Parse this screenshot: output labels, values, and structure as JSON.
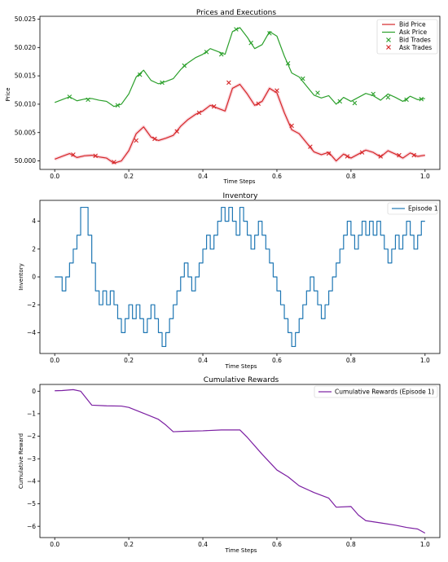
{
  "chart_data": [
    {
      "type": "line",
      "title": "Prices and Executions",
      "xlabel": "Time Steps",
      "ylabel": "Price",
      "xlim": [
        -0.04,
        1.04
      ],
      "ylim": [
        49.9985,
        50.0255
      ],
      "xticks": [
        "0.0",
        "0.2",
        "0.4",
        "0.6",
        "0.8",
        "1.0"
      ],
      "xtick_values": [
        0,
        0.2,
        0.4,
        0.6,
        0.8,
        1.0
      ],
      "yticks": [
        "50.000",
        "50.005",
        "50.010",
        "50.015",
        "50.020",
        "50.025"
      ],
      "ytick_values": [
        50.0,
        50.005,
        50.01,
        50.015,
        50.02,
        50.025
      ],
      "legend_position": "top-right",
      "series": [
        {
          "name": "Bid Price",
          "color": "#d62728",
          "x": [
            0,
            0.02,
            0.04,
            0.06,
            0.08,
            0.1,
            0.12,
            0.14,
            0.16,
            0.18,
            0.2,
            0.22,
            0.24,
            0.26,
            0.28,
            0.3,
            0.32,
            0.34,
            0.36,
            0.38,
            0.4,
            0.42,
            0.44,
            0.46,
            0.48,
            0.5,
            0.52,
            0.54,
            0.56,
            0.58,
            0.6,
            0.62,
            0.64,
            0.66,
            0.68,
            0.7,
            0.72,
            0.74,
            0.76,
            0.78,
            0.8,
            0.82,
            0.84,
            0.86,
            0.88,
            0.9,
            0.92,
            0.94,
            0.96,
            0.98,
            1.0
          ],
          "values": [
            50.0003,
            50.0008,
            50.0013,
            50.0006,
            50.0009,
            50.001,
            50.0007,
            50.0005,
            49.9996,
            50.0,
            50.0018,
            50.0048,
            50.006,
            50.0042,
            50.0036,
            50.004,
            50.0045,
            50.0061,
            50.0073,
            50.0082,
            50.0088,
            50.0098,
            50.0093,
            50.0088,
            50.0128,
            50.0135,
            50.0118,
            50.0098,
            50.0105,
            50.0128,
            50.012,
            50.0085,
            50.0055,
            50.0048,
            50.0032,
            50.0016,
            50.0011,
            50.0015,
            50.0,
            50.0012,
            50.0005,
            50.0012,
            50.0019,
            50.0015,
            50.0007,
            50.0018,
            50.0012,
            50.0005,
            50.0014,
            50.0008,
            50.001
          ]
        },
        {
          "name": "Ask Price",
          "color": "#2ca02c",
          "x": [
            0,
            0.02,
            0.04,
            0.06,
            0.08,
            0.1,
            0.12,
            0.14,
            0.16,
            0.18,
            0.2,
            0.22,
            0.24,
            0.26,
            0.28,
            0.3,
            0.32,
            0.34,
            0.36,
            0.38,
            0.4,
            0.42,
            0.44,
            0.46,
            0.48,
            0.5,
            0.52,
            0.54,
            0.56,
            0.58,
            0.6,
            0.62,
            0.64,
            0.66,
            0.68,
            0.7,
            0.72,
            0.74,
            0.76,
            0.78,
            0.8,
            0.82,
            0.84,
            0.86,
            0.88,
            0.9,
            0.92,
            0.94,
            0.96,
            0.98,
            1.0
          ],
          "values": [
            50.0103,
            50.0108,
            50.0113,
            50.0106,
            50.0109,
            50.011,
            50.0107,
            50.0105,
            50.0096,
            50.01,
            50.0118,
            50.0148,
            50.016,
            50.0142,
            50.0136,
            50.014,
            50.0145,
            50.0161,
            50.0173,
            50.0182,
            50.0188,
            50.0198,
            50.0193,
            50.0188,
            50.0228,
            50.0235,
            50.0218,
            50.0198,
            50.0205,
            50.0228,
            50.022,
            50.0185,
            50.0155,
            50.0148,
            50.0132,
            50.0116,
            50.0111,
            50.0115,
            50.01,
            50.0112,
            50.0105,
            50.0112,
            50.0119,
            50.0115,
            50.0107,
            50.0118,
            50.0112,
            50.0105,
            50.0114,
            50.0108,
            50.011
          ]
        },
        {
          "name": "Bid Trades",
          "color": "#2ca02c",
          "marker": "x",
          "x": [
            0.04,
            0.09,
            0.17,
            0.23,
            0.29,
            0.35,
            0.41,
            0.45,
            0.49,
            0.53,
            0.58,
            0.63,
            0.67,
            0.71,
            0.77,
            0.81,
            0.86,
            0.9,
            0.95,
            0.99
          ],
          "values": [
            50.0113,
            50.0108,
            50.0098,
            50.0152,
            50.0138,
            50.0168,
            50.0192,
            50.0188,
            50.0232,
            50.0208,
            50.0225,
            50.0172,
            50.0145,
            50.012,
            50.0105,
            50.0102,
            50.0118,
            50.0112,
            50.0108,
            50.0109
          ]
        },
        {
          "name": "Ask Trades",
          "color": "#d62728",
          "marker": "x",
          "x": [
            0.05,
            0.11,
            0.16,
            0.22,
            0.27,
            0.33,
            0.39,
            0.43,
            0.47,
            0.55,
            0.6,
            0.64,
            0.69,
            0.74,
            0.79,
            0.83,
            0.88,
            0.93,
            0.97
          ],
          "values": [
            50.0011,
            50.0009,
            49.9998,
            50.0036,
            50.0039,
            50.0052,
            50.0085,
            50.0096,
            50.0138,
            50.0101,
            50.0124,
            50.0062,
            50.0025,
            50.0013,
            50.0008,
            50.0015,
            50.0008,
            50.001,
            50.001
          ]
        }
      ]
    },
    {
      "type": "line",
      "title": "Inventory",
      "xlabel": "Time Steps",
      "ylabel": "Inventory",
      "xlim": [
        -0.04,
        1.04
      ],
      "ylim": [
        -5.5,
        5.5
      ],
      "xticks": [
        "0.0",
        "0.2",
        "0.4",
        "0.6",
        "0.8",
        "1.0"
      ],
      "xtick_values": [
        0,
        0.2,
        0.4,
        0.6,
        0.8,
        1.0
      ],
      "yticks": [
        "−4",
        "−2",
        "0",
        "2",
        "4"
      ],
      "ytick_values": [
        -4,
        -2,
        0,
        2,
        4
      ],
      "legend_position": "top-right",
      "step": true,
      "series": [
        {
          "name": "Episode 1",
          "color": "#1f77b4",
          "x": [
            0,
            0.02,
            0.03,
            0.04,
            0.05,
            0.06,
            0.07,
            0.08,
            0.09,
            0.1,
            0.11,
            0.12,
            0.13,
            0.14,
            0.15,
            0.16,
            0.17,
            0.18,
            0.19,
            0.2,
            0.21,
            0.22,
            0.23,
            0.24,
            0.25,
            0.26,
            0.27,
            0.28,
            0.29,
            0.3,
            0.31,
            0.32,
            0.33,
            0.34,
            0.35,
            0.36,
            0.37,
            0.38,
            0.39,
            0.4,
            0.41,
            0.42,
            0.43,
            0.44,
            0.45,
            0.46,
            0.47,
            0.48,
            0.49,
            0.5,
            0.51,
            0.52,
            0.53,
            0.54,
            0.55,
            0.56,
            0.57,
            0.58,
            0.59,
            0.6,
            0.61,
            0.62,
            0.63,
            0.64,
            0.65,
            0.66,
            0.67,
            0.68,
            0.69,
            0.7,
            0.71,
            0.72,
            0.73,
            0.74,
            0.75,
            0.76,
            0.77,
            0.78,
            0.79,
            0.8,
            0.81,
            0.82,
            0.83,
            0.84,
            0.85,
            0.86,
            0.87,
            0.88,
            0.89,
            0.9,
            0.91,
            0.92,
            0.93,
            0.94,
            0.95,
            0.96,
            0.97,
            0.98,
            0.99,
            1.0
          ],
          "values": [
            0,
            -1,
            0,
            1,
            2,
            3,
            5,
            5,
            3,
            1,
            -1,
            -2,
            -1,
            -2,
            -1,
            -2,
            -3,
            -4,
            -3,
            -2,
            -3,
            -2,
            -3,
            -4,
            -3,
            -2,
            -3,
            -4,
            -5,
            -4,
            -3,
            -2,
            -1,
            0,
            1,
            0,
            -1,
            0,
            1,
            2,
            3,
            2,
            3,
            4,
            5,
            4,
            5,
            4,
            3,
            5,
            4,
            3,
            2,
            3,
            4,
            3,
            2,
            1,
            0,
            -1,
            -2,
            -3,
            -4,
            -5,
            -4,
            -3,
            -2,
            -1,
            0,
            -1,
            -2,
            -3,
            -2,
            -1,
            0,
            1,
            2,
            3,
            4,
            3,
            2,
            3,
            4,
            3,
            4,
            3,
            4,
            3,
            2,
            1,
            2,
            3,
            2,
            3,
            4,
            3,
            2,
            3,
            4,
            4
          ]
        }
      ]
    },
    {
      "type": "line",
      "title": "Cumulative Rewards",
      "xlabel": "Time Steps",
      "ylabel": "Cumulative Reward",
      "xlim": [
        -0.04,
        1.04
      ],
      "ylim": [
        -6.5,
        0.3
      ],
      "xticks": [
        "0.0",
        "0.2",
        "0.4",
        "0.6",
        "0.8",
        "1.0"
      ],
      "xtick_values": [
        0,
        0.2,
        0.4,
        0.6,
        0.8,
        1.0
      ],
      "yticks": [
        "−6",
        "−5",
        "−4",
        "−3",
        "−2",
        "−1",
        "0"
      ],
      "ytick_values": [
        -6,
        -5,
        -4,
        -3,
        -2,
        -1,
        0
      ],
      "legend_position": "top-right",
      "series": [
        {
          "name": "Cumulative Rewards (Episode 1)",
          "color": "#7b1fa2",
          "x": [
            0,
            0.02,
            0.05,
            0.07,
            0.1,
            0.14,
            0.18,
            0.2,
            0.24,
            0.28,
            0.3,
            0.32,
            0.35,
            0.4,
            0.45,
            0.5,
            0.52,
            0.56,
            0.6,
            0.63,
            0.66,
            0.7,
            0.74,
            0.76,
            0.8,
            0.82,
            0.84,
            0.88,
            0.92,
            0.95,
            0.98,
            1.0
          ],
          "values": [
            0.02,
            0.03,
            0.07,
            0.0,
            -0.62,
            -0.65,
            -0.66,
            -0.72,
            -0.98,
            -1.25,
            -1.5,
            -1.8,
            -1.78,
            -1.76,
            -1.72,
            -1.72,
            -2.05,
            -2.8,
            -3.5,
            -3.8,
            -4.2,
            -4.5,
            -4.75,
            -5.15,
            -5.12,
            -5.5,
            -5.75,
            -5.85,
            -5.95,
            -6.05,
            -6.12,
            -6.3
          ]
        }
      ]
    }
  ]
}
